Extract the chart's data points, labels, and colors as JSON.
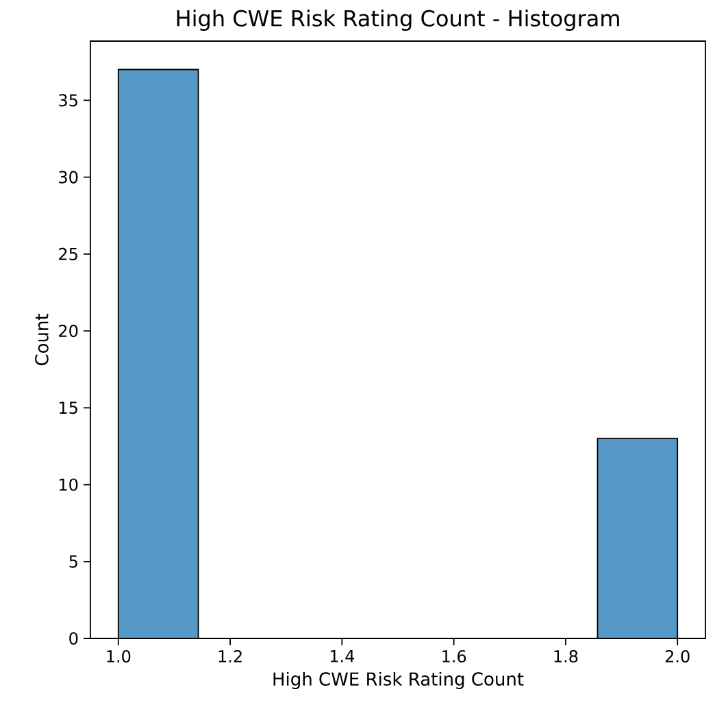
{
  "chart_data": {
    "type": "histogram",
    "title": "High CWE Risk Rating Count - Histogram",
    "xlabel": "High CWE Risk Rating Count",
    "ylabel": "Count",
    "bins": [
      1.0,
      1.143,
      1.857,
      2.0
    ],
    "values": [
      37,
      0,
      13
    ],
    "color": "#5699c6",
    "xlim": [
      0.95,
      2.05
    ],
    "ylim": [
      0,
      38.85
    ],
    "xticks": [
      {
        "value": 1.0,
        "label": "1.0"
      },
      {
        "value": 1.2,
        "label": "1.2"
      },
      {
        "value": 1.4,
        "label": "1.4"
      },
      {
        "value": 1.6,
        "label": "1.6"
      },
      {
        "value": 1.8,
        "label": "1.8"
      },
      {
        "value": 2.0,
        "label": "2.0"
      }
    ],
    "yticks": [
      0,
      5,
      10,
      15,
      20,
      25,
      30,
      35
    ],
    "grid": false
  }
}
